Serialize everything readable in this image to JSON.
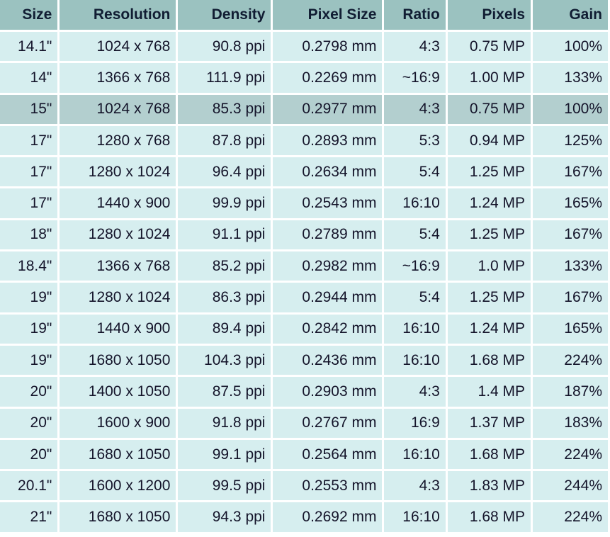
{
  "table": {
    "headers": [
      "Size",
      "Resolution",
      "Density",
      "Pixel Size",
      "Ratio",
      "Pixels",
      "Gain"
    ],
    "highlighted_row": 2,
    "rows": [
      [
        "14.1\"",
        "1024 x 768",
        "90.8 ppi",
        "0.2798 mm",
        "4:3",
        "0.75 MP",
        "100%"
      ],
      [
        "14\"",
        "1366 x 768",
        "111.9 ppi",
        "0.2269 mm",
        "~16:9",
        "1.00 MP",
        "133%"
      ],
      [
        "15\"",
        "1024 x 768",
        "85.3 ppi",
        "0.2977 mm",
        "4:3",
        "0.75 MP",
        "100%"
      ],
      [
        "17\"",
        "1280 x 768",
        "87.8 ppi",
        "0.2893 mm",
        "5:3",
        "0.94 MP",
        "125%"
      ],
      [
        "17\"",
        "1280 x 1024",
        "96.4 ppi",
        "0.2634 mm",
        "5:4",
        "1.25 MP",
        "167%"
      ],
      [
        "17\"",
        "1440 x 900",
        "99.9 ppi",
        "0.2543 mm",
        "16:10",
        "1.24 MP",
        "165%"
      ],
      [
        "18\"",
        "1280 x 1024",
        "91.1 ppi",
        "0.2789 mm",
        "5:4",
        "1.25 MP",
        "167%"
      ],
      [
        "18.4\"",
        "1366 x 768",
        "85.2 ppi",
        "0.2982 mm",
        "~16:9",
        "1.0 MP",
        "133%"
      ],
      [
        "19\"",
        "1280 x 1024",
        "86.3 ppi",
        "0.2944 mm",
        "5:4",
        "1.25 MP",
        "167%"
      ],
      [
        "19\"",
        "1440 x 900",
        "89.4 ppi",
        "0.2842 mm",
        "16:10",
        "1.24 MP",
        "165%"
      ],
      [
        "19\"",
        "1680 x 1050",
        "104.3 ppi",
        "0.2436 mm",
        "16:10",
        "1.68 MP",
        "224%"
      ],
      [
        "20\"",
        "1400 x 1050",
        "87.5 ppi",
        "0.2903 mm",
        "4:3",
        "1.4 MP",
        "187%"
      ],
      [
        "20\"",
        "1600 x 900",
        "91.8 ppi",
        "0.2767 mm",
        "16:9",
        "1.37 MP",
        "183%"
      ],
      [
        "20\"",
        "1680 x 1050",
        "99.1 ppi",
        "0.2564 mm",
        "16:10",
        "1.68 MP",
        "224%"
      ],
      [
        "20.1\"",
        "1600 x 1200",
        "99.5 ppi",
        "0.2553 mm",
        "4:3",
        "1.83 MP",
        "244%"
      ],
      [
        "21\"",
        "1680 x 1050",
        "94.3 ppi",
        "0.2692 mm",
        "16:10",
        "1.68 MP",
        "224%"
      ]
    ]
  },
  "colors": {
    "header_bg": "#9bc2c0",
    "row_bg": "#d6eeef",
    "highlight_bg": "#b3cfcf",
    "text": "#14142a"
  }
}
